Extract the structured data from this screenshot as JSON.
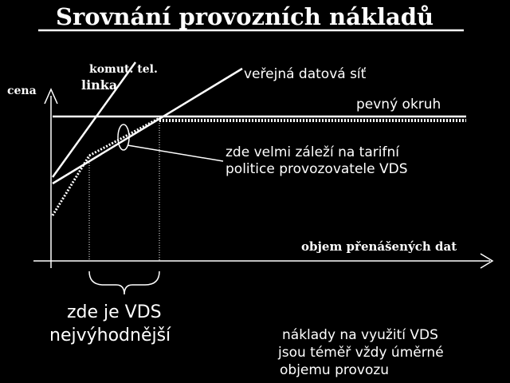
{
  "title": "Srovnání provozních nákladů",
  "axes": {
    "y_label": "cena",
    "x_label": "objem přenášených dat"
  },
  "lines": {
    "switched_phone_1": "komut. tel.",
    "switched_phone_2": "linka",
    "public_data_network": "veřejná datová síť",
    "leased_line": "pevný okruh"
  },
  "annotations": {
    "tariff_note_1": "zde velmi záleží na tarifní",
    "tariff_note_2": "politice provozovatele VDS",
    "best_zone_1": "zde je VDS",
    "best_zone_2": "nejvýhodnější",
    "cost_note_1": "náklady na využití VDS",
    "cost_note_2": "jsou téměř vždy úměrné",
    "cost_note_3": "objemu provozu"
  },
  "colors": {
    "background": "#000000",
    "foreground": "#ffffff"
  }
}
